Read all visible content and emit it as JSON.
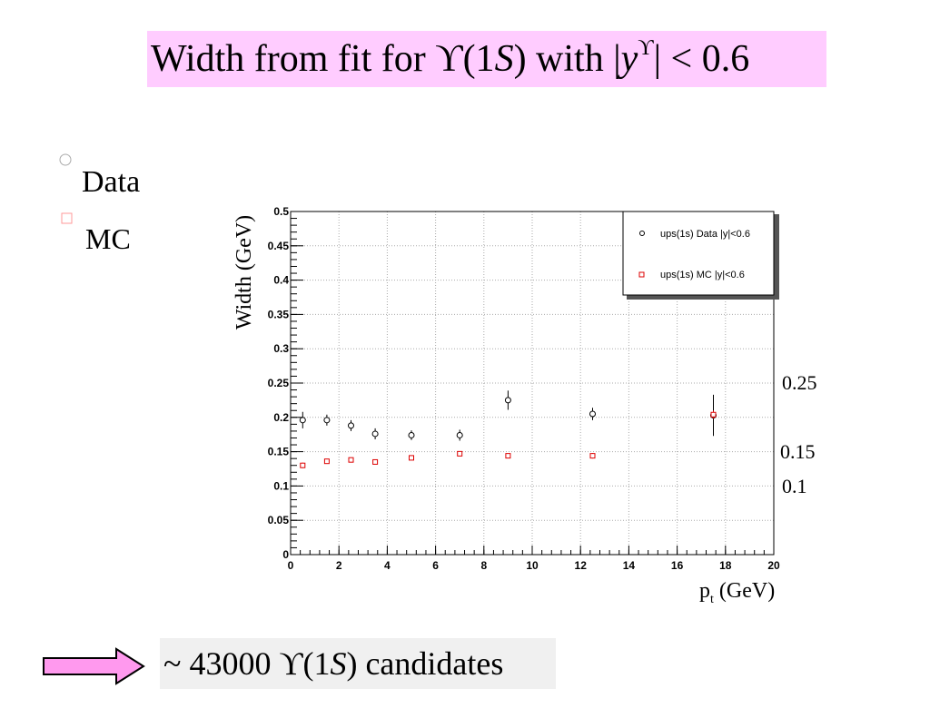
{
  "title": {
    "prefix": "Width from fit for ϒ(1",
    "italic_s": "S",
    "middle": ") with |",
    "italic_y": "y",
    "sup": "ϒ",
    "suffix": "| < 0.6"
  },
  "side_legend": {
    "data_label": "Data",
    "mc_label": "MC"
  },
  "right_annotations": [
    "0.25",
    "0.15",
    "0.1"
  ],
  "axis_labels": {
    "x_main": "p",
    "x_sub": "t",
    "x_unit": " (GeV)",
    "y": "Width (GeV)"
  },
  "bottom_note": {
    "prefix": "~ 43000 ϒ(1",
    "italic_s": "S",
    "suffix": ") candidates"
  },
  "colors": {
    "title_bg": "#ffccff",
    "data_marker": "#000000",
    "mc_marker": "#dd0000",
    "arrow_fill": "#ff99ee",
    "bottom_bg": "#f0f0f0"
  },
  "chart_data": {
    "type": "scatter",
    "xlim": [
      0,
      20
    ],
    "ylim": [
      0,
      0.5
    ],
    "x_ticks": [
      "0",
      "2",
      "4",
      "6",
      "8",
      "10",
      "12",
      "14",
      "16",
      "18",
      "20"
    ],
    "y_ticks": [
      "0",
      "0.05",
      "0.1",
      "0.15",
      "0.2",
      "0.25",
      "0.3",
      "0.35",
      "0.4",
      "0.45",
      "0.5"
    ],
    "grid": true,
    "legend": {
      "placement": "top-right",
      "entries": [
        "ups(1s) Data |y|<0.6",
        "ups(1s) MC   |y|<0.6"
      ]
    },
    "series": [
      {
        "name": "ups(1s) Data |y|<0.6",
        "marker": "circle",
        "color": "#000000",
        "points": [
          {
            "x": 0.5,
            "y": 0.196,
            "err": 0.012
          },
          {
            "x": 1.5,
            "y": 0.196,
            "err": 0.008
          },
          {
            "x": 2.5,
            "y": 0.188,
            "err": 0.008
          },
          {
            "x": 3.5,
            "y": 0.176,
            "err": 0.008
          },
          {
            "x": 5.0,
            "y": 0.174,
            "err": 0.007
          },
          {
            "x": 7.0,
            "y": 0.174,
            "err": 0.008
          },
          {
            "x": 9.0,
            "y": 0.225,
            "err": 0.014
          },
          {
            "x": 12.5,
            "y": 0.205,
            "err": 0.009
          },
          {
            "x": 17.5,
            "y": 0.203,
            "err": 0.03
          }
        ]
      },
      {
        "name": "ups(1s) MC   |y|<0.6",
        "marker": "square",
        "color": "#dd0000",
        "points": [
          {
            "x": 0.5,
            "y": 0.13,
            "err": 0.004
          },
          {
            "x": 1.5,
            "y": 0.136,
            "err": 0.003
          },
          {
            "x": 2.5,
            "y": 0.138,
            "err": 0.003
          },
          {
            "x": 3.5,
            "y": 0.135,
            "err": 0.003
          },
          {
            "x": 5.0,
            "y": 0.141,
            "err": 0.003
          },
          {
            "x": 7.0,
            "y": 0.147,
            "err": 0.003
          },
          {
            "x": 9.0,
            "y": 0.144,
            "err": 0.003
          },
          {
            "x": 12.5,
            "y": 0.144,
            "err": 0.004
          },
          {
            "x": 17.5,
            "y": 0.204,
            "err": 0.006
          }
        ]
      }
    ]
  }
}
